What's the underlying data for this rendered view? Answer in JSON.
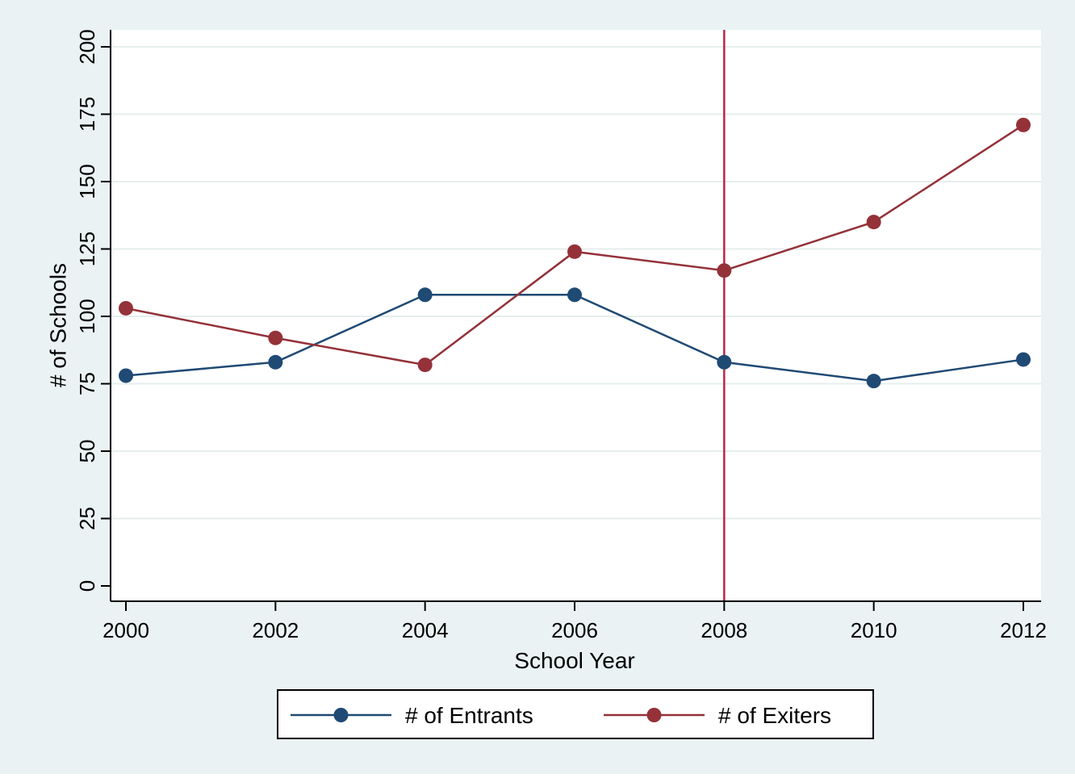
{
  "chart_data": {
    "type": "line",
    "title": "",
    "xlabel": "School Year",
    "ylabel": "# of Schools",
    "x": [
      2000,
      2002,
      2004,
      2006,
      2008,
      2010,
      2012
    ],
    "x_ticks": [
      2000,
      2002,
      2004,
      2006,
      2008,
      2010,
      2012
    ],
    "y_ticks": [
      0,
      25,
      50,
      75,
      100,
      125,
      150,
      175,
      200
    ],
    "xlim": [
      2000,
      2012
    ],
    "ylim": [
      0,
      200
    ],
    "grid": "horizontal",
    "legend_position": "bottom",
    "reference_line": {
      "axis": "x",
      "value": 2008,
      "color": "#b8284a"
    },
    "series": [
      {
        "name": "# of Entrants",
        "color": "#1f4a74",
        "values": [
          78,
          83,
          108,
          108,
          83,
          76,
          84
        ]
      },
      {
        "name": "# of Exiters",
        "color": "#943139",
        "values": [
          103,
          92,
          82,
          124,
          117,
          135,
          171
        ]
      }
    ]
  },
  "colors": {
    "outer_background": "#eaf2f3",
    "plot_background": "#ffffff",
    "grid": "#e6eeee"
  }
}
